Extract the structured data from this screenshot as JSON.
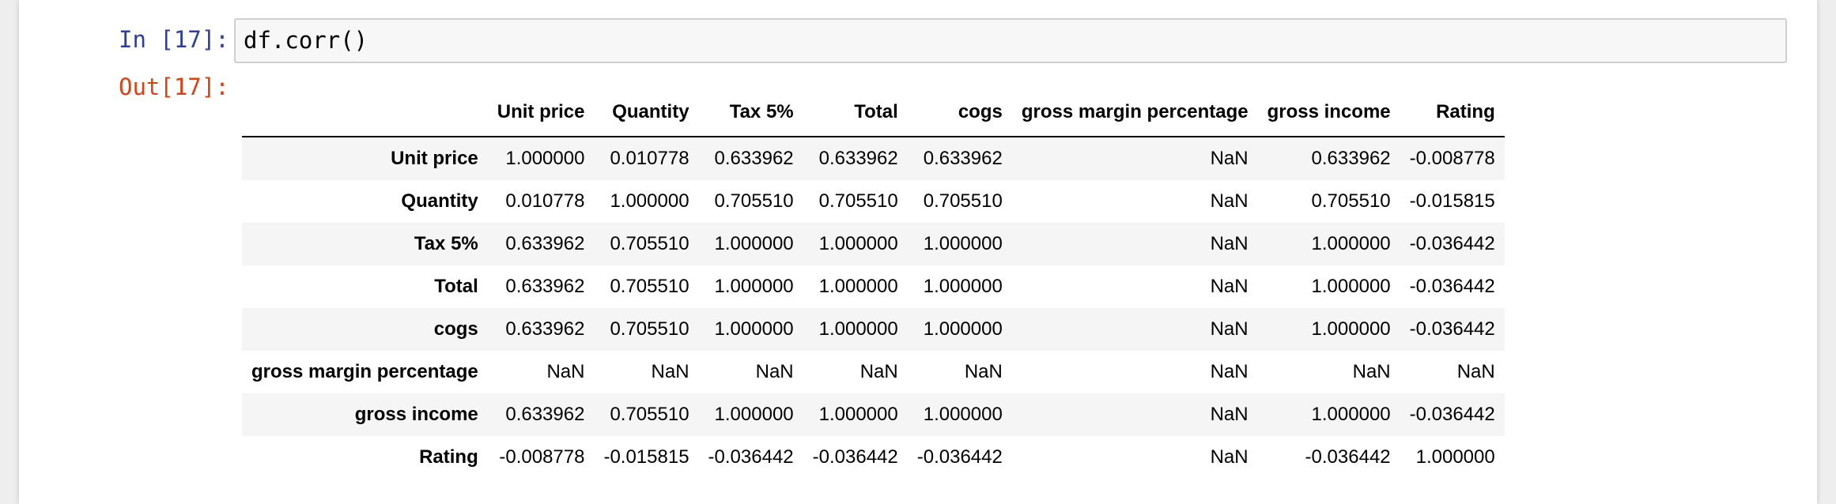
{
  "cell": {
    "in_prompt": "In [17]:",
    "out_prompt": "Out[17]:",
    "code": "df.corr()"
  },
  "table": {
    "columns": [
      "Unit price",
      "Quantity",
      "Tax 5%",
      "Total",
      "cogs",
      "gross margin percentage",
      "gross income",
      "Rating"
    ],
    "rows": [
      {
        "label": "Unit price",
        "values": [
          "1.000000",
          "0.010778",
          "0.633962",
          "0.633962",
          "0.633962",
          "NaN",
          "0.633962",
          "-0.008778"
        ]
      },
      {
        "label": "Quantity",
        "values": [
          "0.010778",
          "1.000000",
          "0.705510",
          "0.705510",
          "0.705510",
          "NaN",
          "0.705510",
          "-0.015815"
        ]
      },
      {
        "label": "Tax 5%",
        "values": [
          "0.633962",
          "0.705510",
          "1.000000",
          "1.000000",
          "1.000000",
          "NaN",
          "1.000000",
          "-0.036442"
        ]
      },
      {
        "label": "Total",
        "values": [
          "0.633962",
          "0.705510",
          "1.000000",
          "1.000000",
          "1.000000",
          "NaN",
          "1.000000",
          "-0.036442"
        ]
      },
      {
        "label": "cogs",
        "values": [
          "0.633962",
          "0.705510",
          "1.000000",
          "1.000000",
          "1.000000",
          "NaN",
          "1.000000",
          "-0.036442"
        ]
      },
      {
        "label": "gross margin percentage",
        "values": [
          "NaN",
          "NaN",
          "NaN",
          "NaN",
          "NaN",
          "NaN",
          "NaN",
          "NaN"
        ]
      },
      {
        "label": "gross income",
        "values": [
          "0.633962",
          "0.705510",
          "1.000000",
          "1.000000",
          "1.000000",
          "NaN",
          "1.000000",
          "-0.036442"
        ]
      },
      {
        "label": "Rating",
        "values": [
          "-0.008778",
          "-0.015815",
          "-0.036442",
          "-0.036442",
          "-0.036442",
          "NaN",
          "-0.036442",
          "1.000000"
        ]
      }
    ]
  },
  "colors": {
    "in_prompt": "#303f9f",
    "out_prompt": "#d84315",
    "input_background": "#f7f7f7",
    "input_border": "#cfcfcf",
    "row_stripe": "#f5f5f5"
  }
}
